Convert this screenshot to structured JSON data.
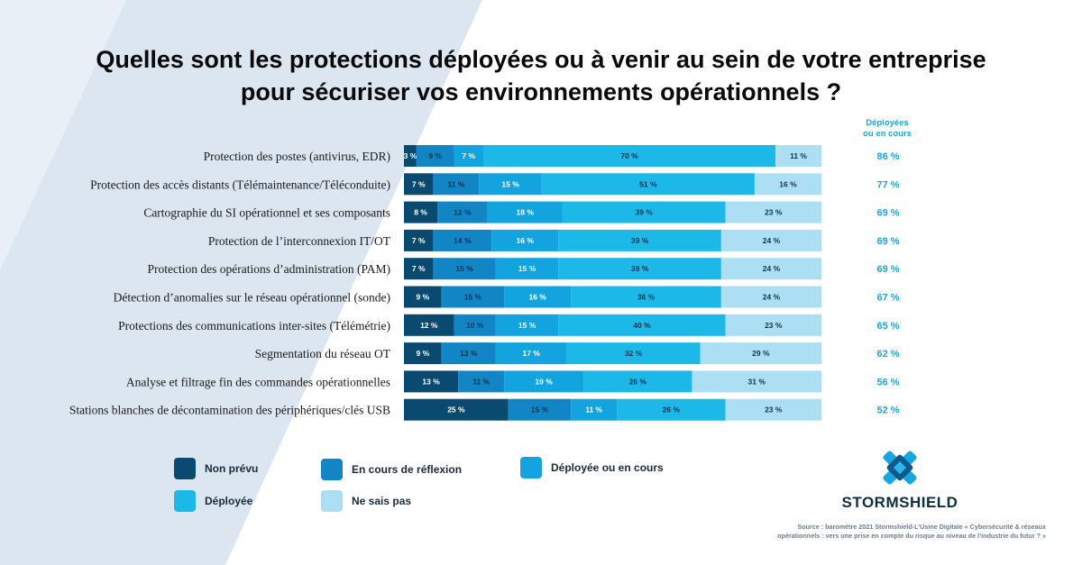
{
  "title_line1": "Quelles sont les protections déployées ou à venir au sein de votre entreprise",
  "title_line2": "pour sécuriser vos environnements opérationnels ?",
  "deployed_header_line1": "Déployées",
  "deployed_header_line2": "ou en cours",
  "colors": {
    "non_prevu": "#0a4a70",
    "reflexion": "#1285c4",
    "deployee_en_cours": "#13a3df",
    "deployee": "#1cb8e8",
    "ne_sais_pas": "#addff4",
    "deployed_text": "#19a8e0",
    "background_band": "#dbe6f1"
  },
  "legend": {
    "non_prevu": "Non prévu",
    "reflexion": "En cours de réflexion",
    "deployee_en_cours": "Déployée ou en cours",
    "deployee": "Déployée",
    "ne_sais_pas": "Ne sais pas"
  },
  "chart_data": {
    "type": "bar",
    "orientation": "horizontal-stacked-100",
    "categories": [
      "Protection des postes (antivirus, EDR)",
      "Protection des accès distants (Télémaintenance/Téléconduite)",
      "Cartographie du SI opérationnel et ses composants",
      "Protection de l’interconnexion IT/OT",
      "Protection des opérations d’administration (PAM)",
      "Détection d’anomalies sur le réseau opérationnel (sonde)",
      "Protections des communications inter-sites (Télémétrie)",
      "Segmentation du réseau OT",
      "Analyse et filtrage fin des commandes opérationnelles",
      "Stations blanches de décontamination des périphériques/clés USB"
    ],
    "series": [
      {
        "name": "Non prévu",
        "color": "#0a4a70",
        "values": [
          3,
          7,
          8,
          7,
          7,
          9,
          12,
          9,
          13,
          25
        ]
      },
      {
        "name": "En cours de réflexion",
        "color": "#1285c4",
        "values": [
          9,
          11,
          12,
          14,
          15,
          15,
          10,
          13,
          11,
          15
        ]
      },
      {
        "name": "Déployée ou en cours",
        "color": "#13a3df",
        "values": [
          7,
          15,
          18,
          16,
          15,
          16,
          15,
          17,
          19,
          11
        ]
      },
      {
        "name": "Déployée",
        "color": "#1cb8e8",
        "values": [
          70,
          51,
          39,
          39,
          39,
          36,
          40,
          32,
          26,
          26
        ]
      },
      {
        "name": "Ne sais pas",
        "color": "#addff4",
        "values": [
          11,
          16,
          23,
          24,
          24,
          24,
          23,
          29,
          31,
          23
        ]
      }
    ],
    "deployed_or_in_progress": [
      86,
      77,
      69,
      69,
      69,
      67,
      65,
      62,
      56,
      52
    ],
    "value_suffix": " %",
    "xlim": [
      0,
      100
    ]
  },
  "brand": "STORMSHIELD",
  "source_line1": "Source : baromètre 2021 Stormshield-L’Usine Digitale « Cybersécurité & réseaux",
  "source_line2": "opérationnels : vers une prise en compte du risque au niveau de l’industrie du futur ? »"
}
